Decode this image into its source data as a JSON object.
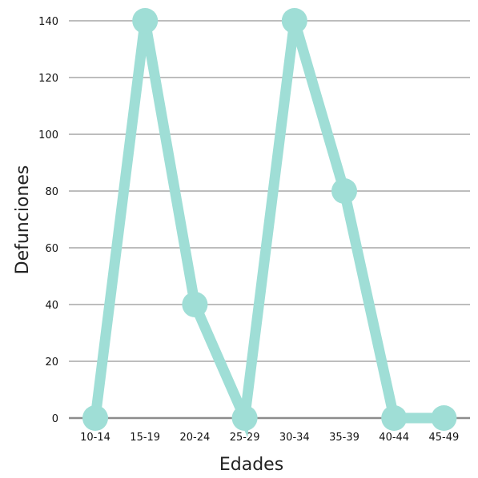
{
  "chart_data": {
    "type": "line",
    "xlabel": "Edades",
    "ylabel": "Defunciones",
    "categories": [
      "10-14",
      "15-19",
      "20-24",
      "25-29",
      "30-34",
      "35-39",
      "40-44",
      "45-49"
    ],
    "values": [
      0,
      140,
      40,
      0,
      140,
      80,
      0,
      0
    ],
    "ylim": [
      0,
      140
    ],
    "yticks": [
      "0",
      "20",
      "40",
      "60",
      "80",
      "100",
      "120",
      "140"
    ],
    "grid": true,
    "legend": "none",
    "colors": {
      "series": "#9fded6",
      "grid": "#bdbdbd",
      "baseline": "#8c8c8c"
    }
  }
}
